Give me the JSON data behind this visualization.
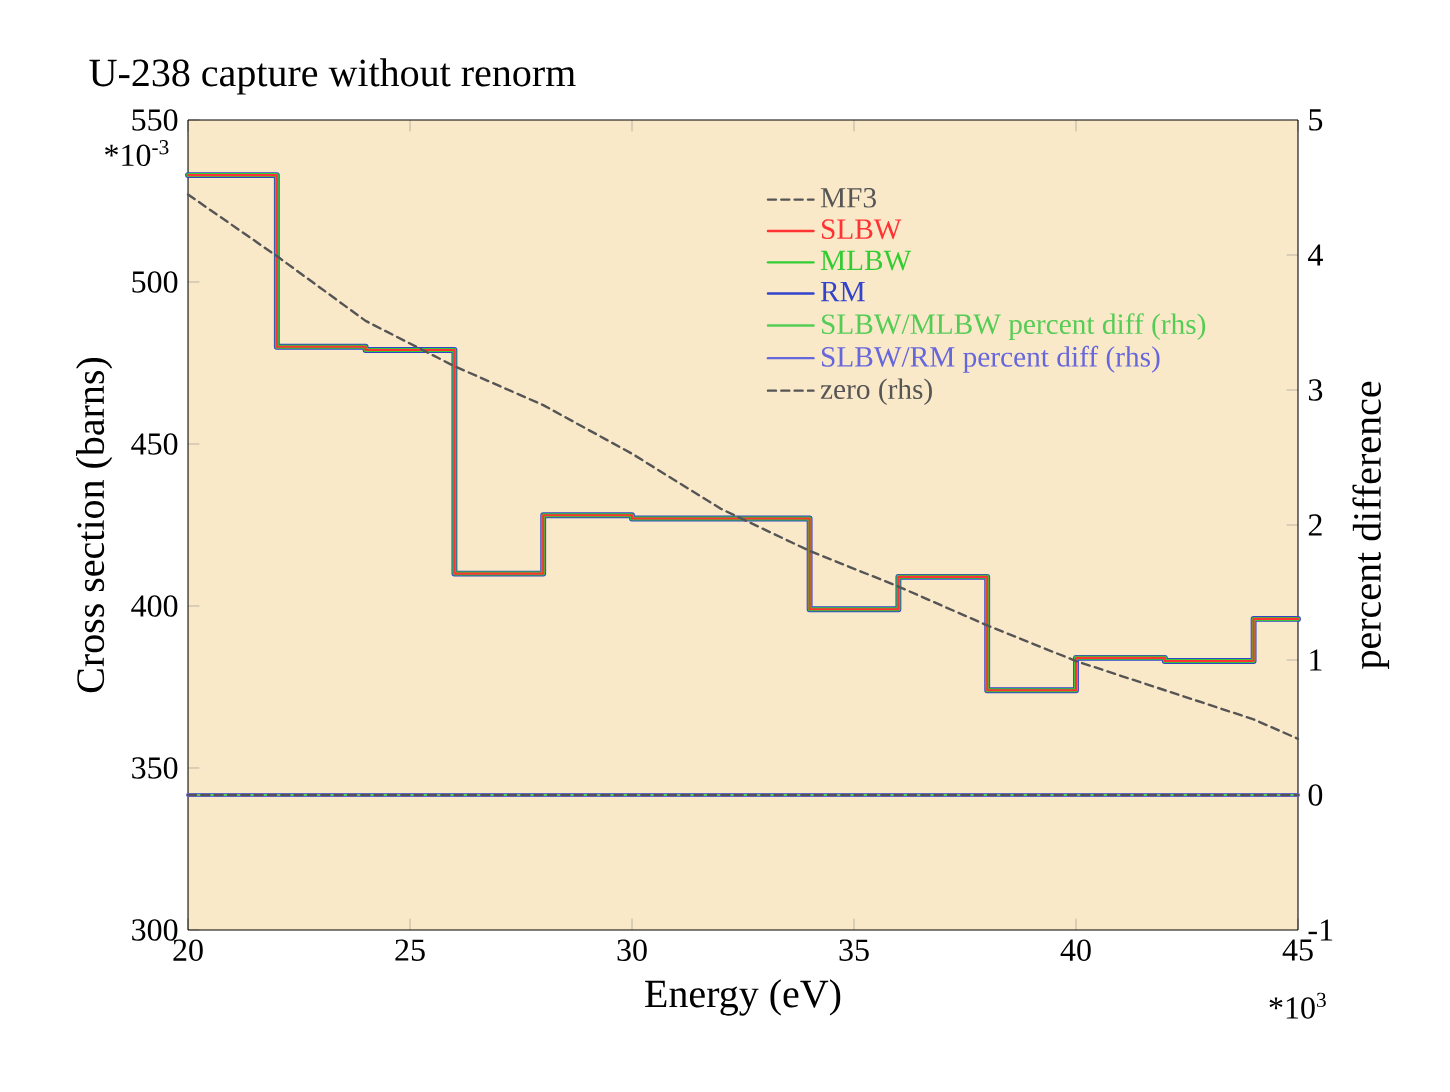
{
  "chart_data": {
    "type": "step",
    "title": "U-238 capture without renorm",
    "xlabel": "Energy (eV)",
    "ylabel": "Cross section (barns)",
    "y2label": "percent difference",
    "annotations": [
      "*10$^{-3}$",
      "*10$^{3}$"
    ],
    "xlim": [
      20,
      45
    ],
    "xticks": [
      20,
      25,
      30,
      35,
      40,
      45
    ],
    "ylim": [
      300,
      550
    ],
    "yticks": [
      300,
      350,
      400,
      450,
      500,
      550
    ],
    "y2lim": [
      -1,
      5
    ],
    "y2ticks": [
      -1,
      0,
      1,
      2,
      3,
      4,
      5
    ],
    "legend": "top right",
    "series": [
      {
        "name": "MF3",
        "type": "line",
        "color": "#555555",
        "line_style": "dashed",
        "x": [
          20,
          22,
          24,
          26,
          28,
          30,
          32,
          34,
          36,
          38,
          40,
          42,
          44,
          45
        ],
        "values": [
          527,
          508,
          488,
          474,
          462,
          447,
          430,
          417,
          406,
          394,
          383,
          374,
          365,
          359
        ]
      },
      {
        "name": "SLBW",
        "color": "#ff3333",
        "x": [
          20,
          22,
          24,
          26,
          28,
          30,
          32,
          34,
          36,
          38,
          40,
          42,
          44,
          45
        ],
        "values": [
          533,
          480,
          479,
          410,
          428,
          427,
          427,
          399,
          409,
          374,
          384,
          383,
          396,
          396
        ]
      },
      {
        "name": "MLBW",
        "color": "#33cc33",
        "x": [
          20,
          22,
          24,
          26,
          28,
          30,
          32,
          34,
          36,
          38,
          40,
          42,
          44,
          45
        ],
        "values": [
          533,
          480,
          479,
          410,
          428,
          427,
          427,
          399,
          409,
          374,
          384,
          383,
          396,
          396
        ]
      },
      {
        "name": "RM",
        "color": "#3344cc",
        "x": [
          20,
          22,
          24,
          26,
          28,
          30,
          32,
          34,
          36,
          38,
          40,
          42,
          44,
          45
        ],
        "values": [
          533,
          480,
          479,
          410,
          428,
          427,
          427,
          399,
          409,
          374,
          384,
          383,
          396,
          396
        ]
      },
      {
        "name": "SLBW/MLBW percent diff (rhs)",
        "color": "#55cc55",
        "axis": "y2",
        "x": [
          20,
          22,
          24,
          26,
          28,
          30,
          32,
          34,
          36,
          38,
          40,
          42,
          44,
          45
        ],
        "values": [
          0,
          0,
          0,
          0,
          0,
          0,
          0,
          0,
          0,
          0,
          0,
          0,
          0,
          0
        ]
      },
      {
        "name": "SLBW/RM percent diff (rhs)",
        "color": "#6666dd",
        "axis": "y2",
        "x": [
          20,
          22,
          24,
          26,
          28,
          30,
          32,
          34,
          36,
          38,
          40,
          42,
          44,
          45
        ],
        "values": [
          0,
          0,
          0,
          0,
          0,
          0,
          0,
          0,
          0,
          0,
          0,
          0,
          0,
          0
        ]
      },
      {
        "name": "zero (rhs)",
        "type": "line",
        "color": "#555555",
        "line_style": "dashed",
        "axis": "y2",
        "x": [
          20,
          45
        ],
        "values": [
          0,
          0
        ]
      }
    ]
  }
}
